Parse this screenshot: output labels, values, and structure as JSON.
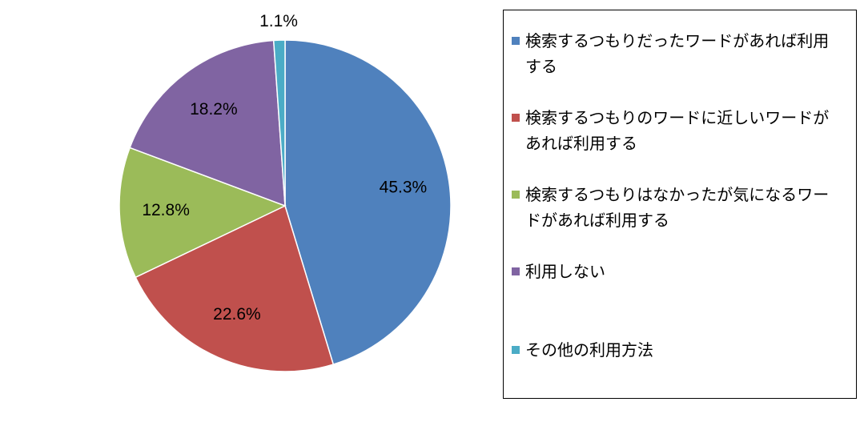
{
  "chart_data": {
    "type": "pie",
    "categories": [
      "検索するつもりだったワードがあれば利用する",
      "検索するつもりのワードに近しいワードがあれば利用する",
      "検索するつもりはなかったが気になるワードがあれば利用する",
      "利用しない",
      "その他の利用方法"
    ],
    "values": [
      45.3,
      22.6,
      12.8,
      18.2,
      1.1
    ],
    "value_labels": [
      "45.3%",
      "22.6%",
      "12.8%",
      "18.2%",
      "1.1%"
    ],
    "colors": [
      "#4f81bd",
      "#c0504d",
      "#9bbb59",
      "#8064a2",
      "#4bacc6"
    ]
  }
}
